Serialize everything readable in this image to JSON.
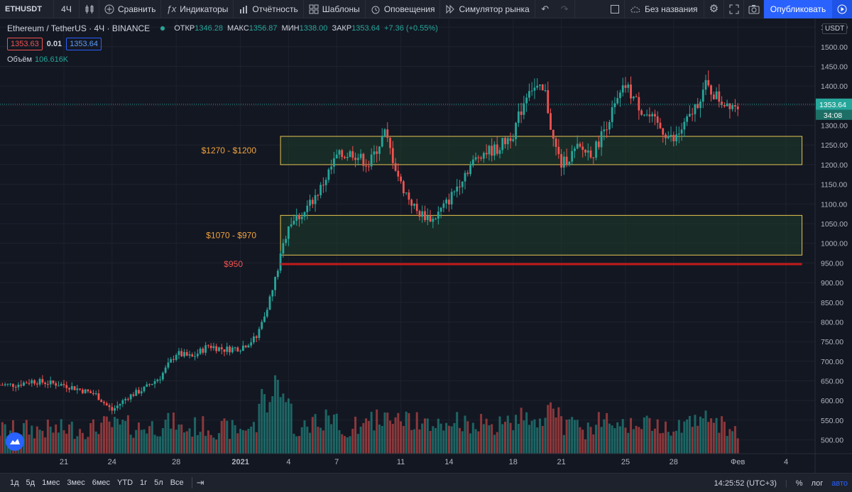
{
  "toolbar": {
    "symbol": "ETHUSDT",
    "interval": "4Ч",
    "compare": "Сравнить",
    "indicators": "Индикаторы",
    "financials": "Отчётность",
    "templates": "Шаблоны",
    "alerts": "Оповещения",
    "replay": "Симулятор рынка",
    "layout_name": "Без названия",
    "publish": "Опубликовать",
    "icons": [
      "candles-icon",
      "plus-circle-icon",
      "fx-icon",
      "bars-icon",
      "templates-icon",
      "alarm-icon",
      "replay-icon",
      "undo-icon",
      "redo-icon",
      "square-icon",
      "cloud-icon",
      "gear-icon",
      "fullscreen-icon",
      "camera-icon",
      "play-icon"
    ]
  },
  "legend": {
    "title": "Ethereum / TetherUS · 4Ч · BINANCE",
    "open_label": "ОТКР",
    "open": "1346.28",
    "high_label": "МАКС",
    "high": "1356.87",
    "low_label": "МИН",
    "low": "1338.00",
    "close_label": "ЗАКР",
    "close": "1353.64",
    "change": "+7.36 (+0.55%)",
    "sell_price": "1353.63",
    "spread": "0.01",
    "buy_price": "1353.64",
    "volume_label": "Объём",
    "volume_value": "106.616K"
  },
  "price_axis": {
    "currency": "USDT",
    "last_price": "1353.64",
    "countdown": "34:08"
  },
  "annotations": {
    "zone1_label": "$1270 - $1200",
    "zone2_label": "$1070 - $970",
    "line_label": "$950"
  },
  "colors": {
    "up": "#26a69a",
    "down": "#ef5350",
    "zone_border": "#e5c453",
    "zone_fill": "#1f3d2a",
    "support": "#c21a1a",
    "accent": "#2962ff"
  },
  "bottombar": {
    "ranges": [
      "1д",
      "5д",
      "1мес",
      "3мес",
      "6мес",
      "YTD",
      "1г",
      "5л",
      "Все"
    ],
    "time": "14:25:52 (UTC+3)",
    "percent": "%",
    "log": "лог",
    "auto": "авто"
  },
  "chart_data": {
    "type": "candlestick",
    "symbol": "ETHUSDT",
    "timeframe": "4h",
    "y_ticks": [
      500,
      550,
      600,
      650,
      700,
      750,
      800,
      850,
      900,
      950,
      1000,
      1050,
      1100,
      1150,
      1200,
      1250,
      1300,
      1350,
      1400,
      1450,
      1500,
      1550
    ],
    "ylim": [
      465,
      1570
    ],
    "x_ticks": [
      {
        "label": "21",
        "day": 0
      },
      {
        "label": "24",
        "day": 3
      },
      {
        "label": "28",
        "day": 7
      },
      {
        "label": "2021",
        "day": 11
      },
      {
        "label": "4",
        "day": 14
      },
      {
        "label": "7",
        "day": 17
      },
      {
        "label": "11",
        "day": 21
      },
      {
        "label": "14",
        "day": 24
      },
      {
        "label": "18",
        "day": 28
      },
      {
        "label": "21",
        "day": 31
      },
      {
        "label": "25",
        "day": 35
      },
      {
        "label": "28",
        "day": 38
      },
      {
        "label": "Фев",
        "day": 42
      },
      {
        "label": "4",
        "day": 45
      }
    ],
    "close_path_points": [
      {
        "day": -3,
        "price": 640
      },
      {
        "day": -2,
        "price": 650
      },
      {
        "day": -1,
        "price": 645
      },
      {
        "day": 0,
        "price": 640
      },
      {
        "day": 1,
        "price": 628
      },
      {
        "day": 2,
        "price": 615
      },
      {
        "day": 2.6,
        "price": 590
      },
      {
        "day": 3,
        "price": 575
      },
      {
        "day": 4,
        "price": 610
      },
      {
        "day": 5,
        "price": 630
      },
      {
        "day": 6,
        "price": 660
      },
      {
        "day": 7,
        "price": 720
      },
      {
        "day": 8,
        "price": 710
      },
      {
        "day": 9,
        "price": 740
      },
      {
        "day": 10,
        "price": 730
      },
      {
        "day": 11,
        "price": 735
      },
      {
        "day": 12,
        "price": 760
      },
      {
        "day": 13,
        "price": 880
      },
      {
        "day": 14,
        "price": 1050
      },
      {
        "day": 15,
        "price": 1080
      },
      {
        "day": 16,
        "price": 1140
      },
      {
        "day": 17,
        "price": 1220
      },
      {
        "day": 18,
        "price": 1230
      },
      {
        "day": 19,
        "price": 1200
      },
      {
        "day": 20,
        "price": 1280
      },
      {
        "day": 21,
        "price": 1150
      },
      {
        "day": 22,
        "price": 1080
      },
      {
        "day": 23,
        "price": 1060
      },
      {
        "day": 24,
        "price": 1110
      },
      {
        "day": 25,
        "price": 1180
      },
      {
        "day": 26,
        "price": 1230
      },
      {
        "day": 27,
        "price": 1240
      },
      {
        "day": 28,
        "price": 1280
      },
      {
        "day": 29,
        "price": 1400
      },
      {
        "day": 30,
        "price": 1380
      },
      {
        "day": 30.5,
        "price": 1260
      },
      {
        "day": 31,
        "price": 1200
      },
      {
        "day": 32,
        "price": 1240
      },
      {
        "day": 33,
        "price": 1230
      },
      {
        "day": 34,
        "price": 1320
      },
      {
        "day": 35,
        "price": 1400
      },
      {
        "day": 36,
        "price": 1340
      },
      {
        "day": 37,
        "price": 1300
      },
      {
        "day": 38,
        "price": 1260
      },
      {
        "day": 39,
        "price": 1320
      },
      {
        "day": 40,
        "price": 1400
      },
      {
        "day": 41,
        "price": 1360
      },
      {
        "day": 42,
        "price": 1354
      }
    ],
    "zones": [
      {
        "label": "$1270 - $1200",
        "low": 1200,
        "high": 1272,
        "start_day": 13.5,
        "end_day": 46
      },
      {
        "label": "$1070 - $970",
        "low": 970,
        "high": 1071,
        "start_day": 13.5,
        "end_day": 46
      }
    ],
    "horizontal_lines": [
      {
        "label": "$950",
        "price": 947,
        "start_day": 13.5,
        "end_day": 46
      }
    ],
    "last_price": 1353.64
  }
}
